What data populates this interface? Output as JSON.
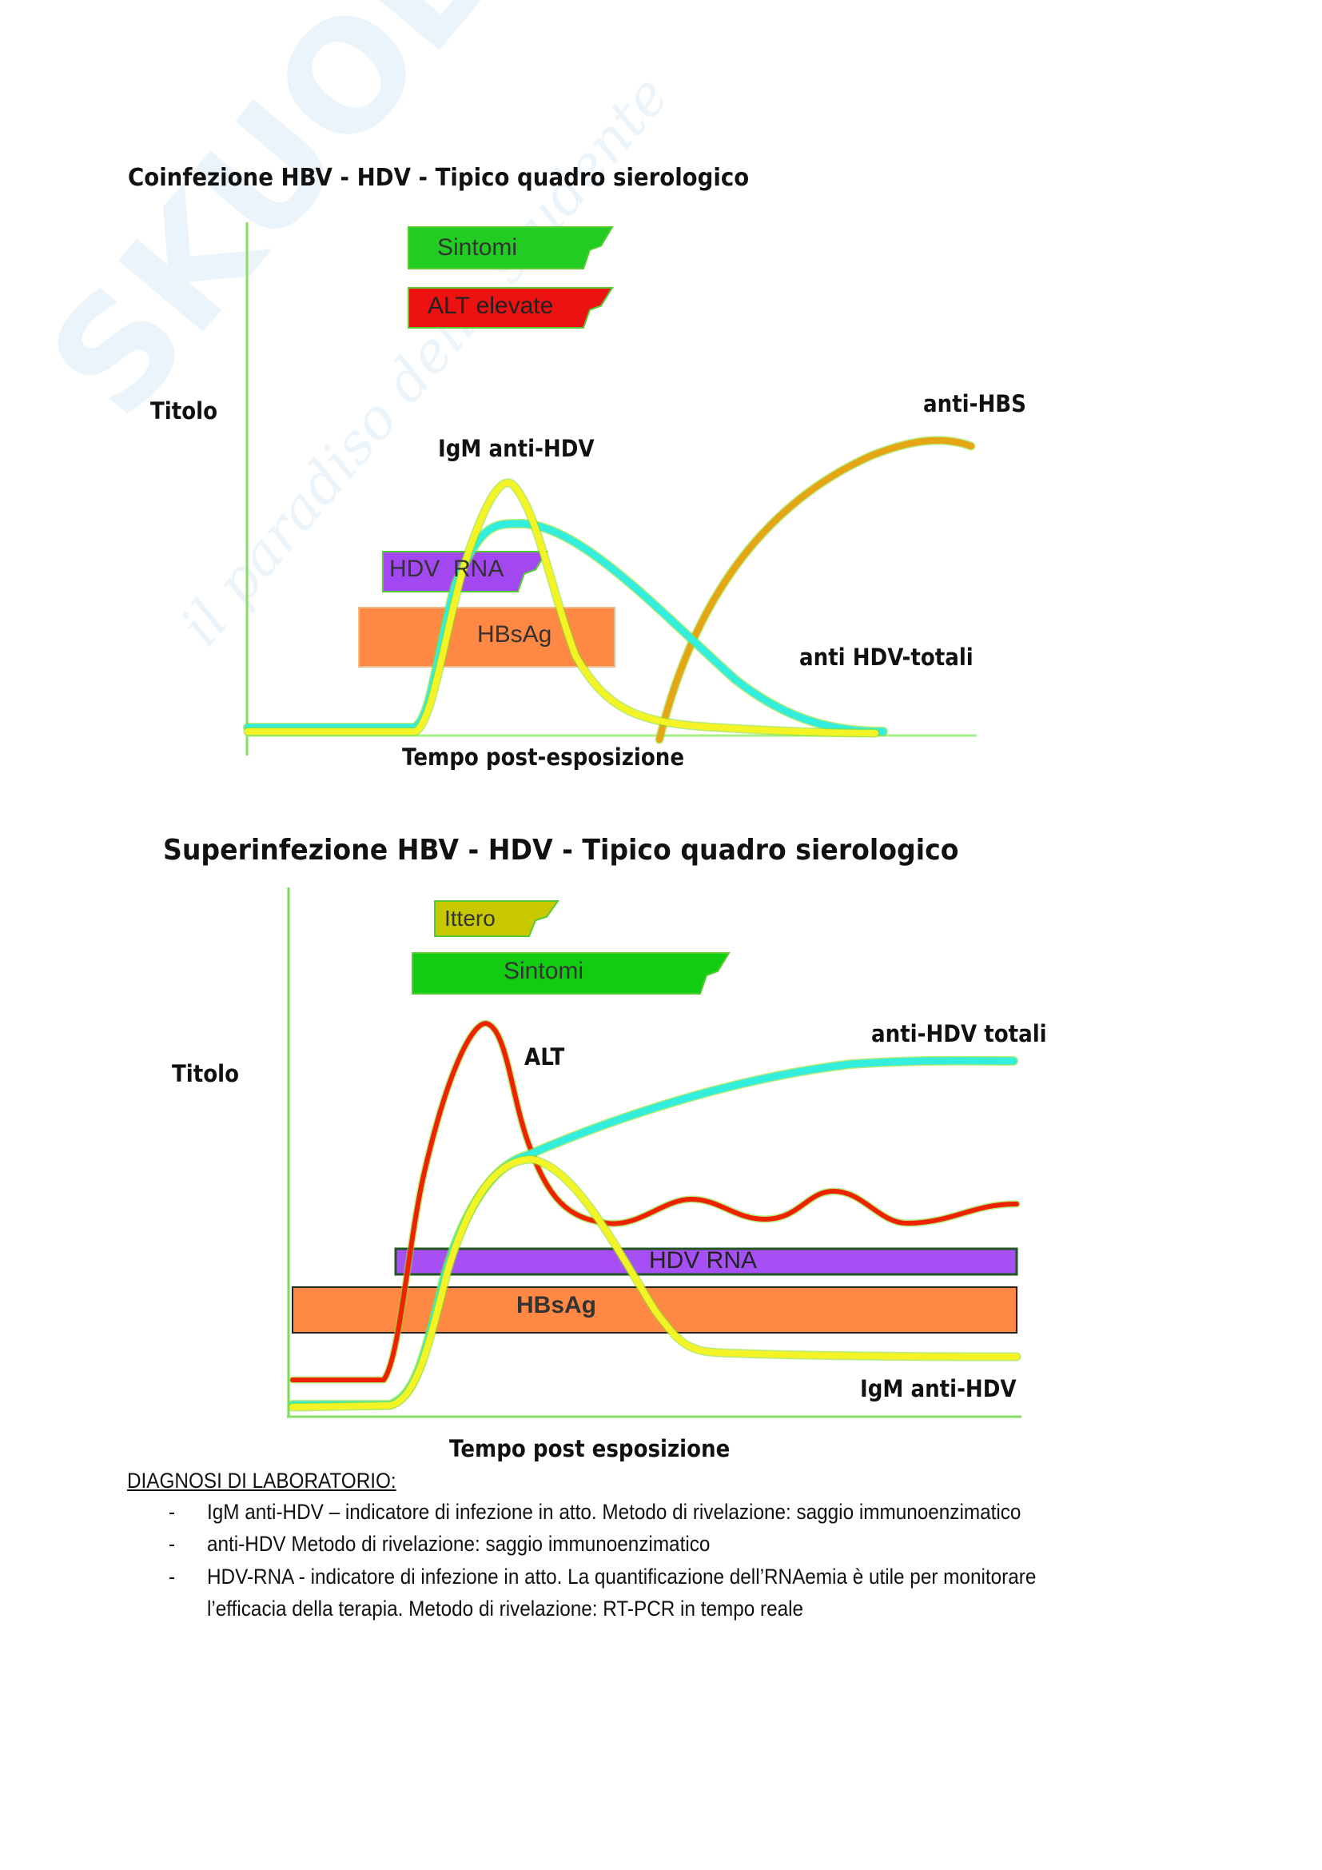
{
  "watermark": {
    "brand": "SKUOLA.net",
    "tagline": "il paradiso dello studente"
  },
  "chart1": {
    "title": "Coinfezione HBV - HDV - Tipico quadro sierologico",
    "ylabel": "Titolo",
    "xlabel": "Tempo post-esposizione",
    "bars": {
      "sintomi": "Sintomi",
      "alt": "ALT elevate",
      "hdv_rna": "HDV  RNA",
      "hbsag": "HBsAg"
    },
    "curves": {
      "igm": "IgM anti-HDV",
      "anti_hbs": "anti-HBS",
      "anti_hdv_tot": "anti HDV-totali"
    },
    "colors": {
      "sintomi": "#22cc22",
      "alt": "#ee1111",
      "hdv_rna": "#a347f0",
      "hbsag": "#ff8844",
      "yellow": "#f0f020",
      "cyan": "#33eedd",
      "orange": "#e0a020"
    }
  },
  "chart2": {
    "title": "Superinfezione HBV - HDV - Tipico quadro sierologico",
    "ylabel": "Titolo",
    "xlabel": "Tempo post esposizione",
    "bars": {
      "ittero": "Ittero",
      "sintomi": "Sintomi",
      "hdv_rna": "HDV RNA",
      "hbsag": "HBsAg"
    },
    "curves": {
      "alt": "ALT",
      "anti_hdv_tot": "anti-HDV totali",
      "igm": "IgM anti-HDV"
    },
    "colors": {
      "ittero": "#c8c800",
      "sintomi": "#11cc11",
      "hdv_rna": "#a64ff5",
      "hbsag": "#ff8844",
      "red": "#ee2200",
      "cyan": "#33eedd",
      "yellow": "#f0f020"
    }
  },
  "lab": {
    "heading": "DIAGNOSI DI LABORATORIO:",
    "bullet": "-",
    "items": [
      "IgM anti-HDV – indicatore di infezione in atto. Metodo di rivelazione: saggio immunoenzimatico",
      "anti-HDV Metodo di rivelazione: saggio immunoenzimatico",
      "HDV-RNA - indicatore di infezione in atto. La quantificazione dell’RNAemia è utile per monitorare",
      "l’efficacia della terapia. Metodo di rivelazione: RT-PCR in tempo reale"
    ]
  }
}
